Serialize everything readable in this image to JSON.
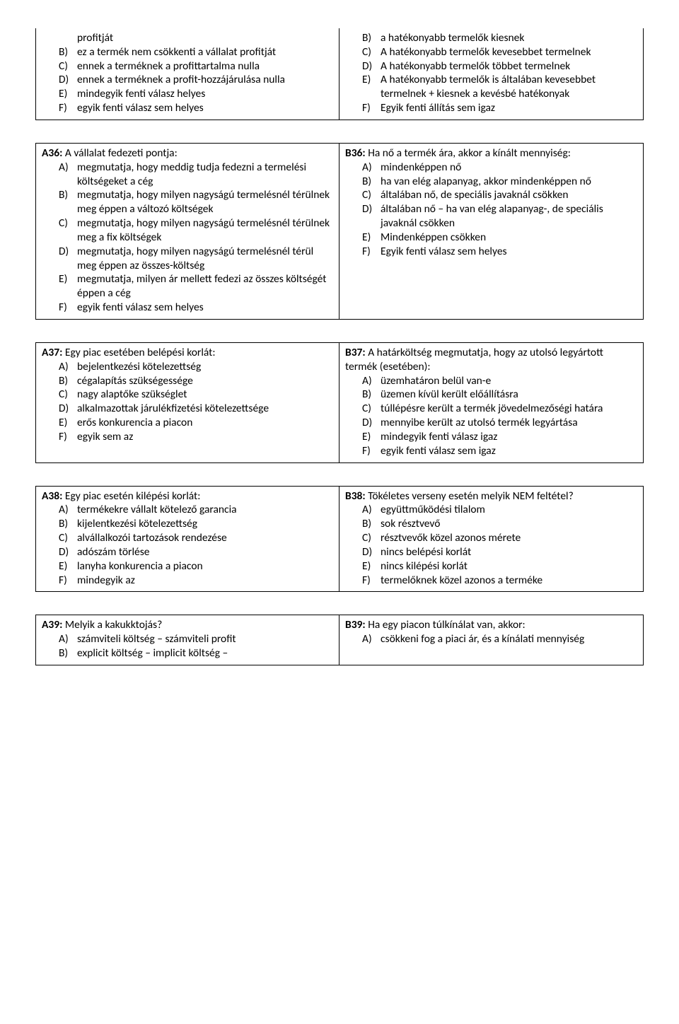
{
  "blocks": [
    {
      "border": false,
      "left": {
        "continuation": true,
        "lines": [
          {
            "text": "profitját"
          },
          {
            "letter": "B)",
            "text": "ez a termék nem csökkenti a vállalat profitját"
          },
          {
            "letter": "C)",
            "text": "ennek a terméknek a profittartalma nulla"
          },
          {
            "letter": "D)",
            "text": "ennek a terméknek a profit-hozzájárulása nulla"
          },
          {
            "letter": "E)",
            "text": "mindegyik fenti válasz helyes"
          },
          {
            "letter": "F)",
            "text": "egyik fenti válasz sem helyes"
          }
        ]
      },
      "right": {
        "continuation": true,
        "lines": [
          {
            "letter": "B)",
            "text": "a hatékonyabb termelők kiesnek"
          },
          {
            "letter": "C)",
            "text": "A hatékonyabb termelők kevesebbet termelnek"
          },
          {
            "letter": "D)",
            "text": "A hatékonyabb termelők többet termelnek"
          },
          {
            "letter": "E)",
            "text": "A hatékonyabb termelők is általában kevesebbet termelnek + kiesnek a kevésbé hatékonyak"
          },
          {
            "letter": "F)",
            "text": "Egyik fenti állítás sem igaz"
          }
        ]
      }
    },
    {
      "border": true,
      "left": {
        "qnum": "A36:",
        "stem": "A vállalat fedezeti pontja:",
        "options": [
          {
            "letter": "A)",
            "text": "megmutatja, hogy meddig tudja fedezni a termelési költségeket a cég"
          },
          {
            "letter": "B)",
            "text": "megmutatja, hogy milyen nagyságú termelésnél térülnek meg éppen a változó költségek"
          },
          {
            "letter": "C)",
            "text": "megmutatja, hogy milyen nagyságú termelésnél térülnek meg a fix költségek"
          },
          {
            "letter": "D)",
            "text": "megmutatja, hogy milyen nagyságú termelésnél térül meg éppen az összes-költség"
          },
          {
            "letter": "E)",
            "text": "megmutatja, milyen ár mellett fedezi az összes költségét éppen a cég"
          },
          {
            "letter": "F)",
            "text": "egyik fenti válasz sem helyes"
          }
        ]
      },
      "right": {
        "qnum": "B36:",
        "stem": "Ha nő a termék ára, akkor a kínált mennyiség:",
        "options": [
          {
            "letter": "A)",
            "text": "mindenképpen nő"
          },
          {
            "letter": "B)",
            "text": "ha van elég alapanyag, akkor mindenképpen nő"
          },
          {
            "letter": "C)",
            "text": "általában nő, de speciális javaknál csökken"
          },
          {
            "letter": "D)",
            "text": "általában nő – ha van elég alapanyag-, de speciális javaknál csökken"
          },
          {
            "letter": "E)",
            "text": "Mindenképpen csökken"
          },
          {
            "letter": "F)",
            "text": "Egyik fenti válasz sem helyes"
          }
        ]
      }
    },
    {
      "border": true,
      "left": {
        "qnum": "A37:",
        "stem": "Egy piac esetében belépési korlát:",
        "options": [
          {
            "letter": "A)",
            "text": "bejelentkezési kötelezettség"
          },
          {
            "letter": "B)",
            "text": "cégalapítás szükségessége"
          },
          {
            "letter": "C)",
            "text": "nagy alaptőke szükséglet"
          },
          {
            "letter": "D)",
            "text": "alkalmazottak járulékfizetési kötelezettsége"
          },
          {
            "letter": "E)",
            "text": "erős konkurencia a piacon"
          },
          {
            "letter": "F)",
            "text": "egyik sem az"
          }
        ]
      },
      "right": {
        "qnum": "B37:",
        "stem": "A határköltség megmutatja, hogy az utolsó legyártott termék (esetében):",
        "options": [
          {
            "letter": "A)",
            "text": "üzemhatáron belül van-e"
          },
          {
            "letter": "B)",
            "text": "üzemen kívül került előállításra"
          },
          {
            "letter": "C)",
            "text": "túllépésre került a termék jövedelmezőségi határa"
          },
          {
            "letter": "D)",
            "text": "mennyibe került az utolsó termék legyártása"
          },
          {
            "letter": "E)",
            "text": "mindegyik fenti válasz igaz"
          },
          {
            "letter": "F)",
            "text": "egyik fenti válasz sem igaz"
          }
        ]
      }
    },
    {
      "border": true,
      "left": {
        "qnum": "A38:",
        "stem": "Egy piac esetén kilépési korlát:",
        "options": [
          {
            "letter": "A)",
            "text": "termékekre vállalt kötelező garancia"
          },
          {
            "letter": "B)",
            "text": "kijelentkezési kötelezettség"
          },
          {
            "letter": "C)",
            "text": "alvállalkozói tartozások rendezése"
          },
          {
            "letter": "D)",
            "text": "adószám törlése"
          },
          {
            "letter": "E)",
            "text": "lanyha konkurencia a piacon"
          },
          {
            "letter": "F)",
            "text": "mindegyik az"
          }
        ]
      },
      "right": {
        "qnum": "B38:",
        "stem": "Tökéletes verseny esetén melyik NEM feltétel?",
        "options": [
          {
            "letter": "A)",
            "text": "együttműködési tilalom"
          },
          {
            "letter": "B)",
            "text": "sok résztvevő"
          },
          {
            "letter": "C)",
            "text": "résztvevők közel azonos mérete"
          },
          {
            "letter": "D)",
            "text": "nincs belépési korlát"
          },
          {
            "letter": "E)",
            "text": "nincs kilépési korlát"
          },
          {
            "letter": "F)",
            "text": "termelőknek közel azonos a terméke"
          }
        ]
      }
    },
    {
      "border": true,
      "left": {
        "qnum": "A39:",
        "stem": "Melyik a kakukktojás?",
        "options": [
          {
            "letter": "A)",
            "text": "számviteli költség  – számviteli profit"
          },
          {
            "letter": "B)",
            "text": "explicit költség – implicit költség –"
          }
        ]
      },
      "right": {
        "qnum": "B39:",
        "stem": "Ha egy piacon túlkínálat van, akkor:",
        "options": [
          {
            "letter": "A)",
            "text": "csökkeni fog a piaci ár, és a kínálati mennyiség"
          }
        ]
      }
    }
  ]
}
